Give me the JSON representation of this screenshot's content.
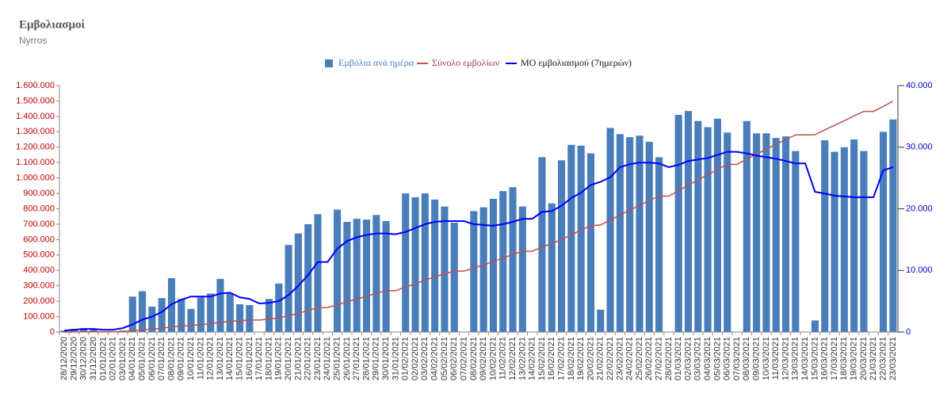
{
  "chart_data": {
    "type": "bar",
    "title": "Εμβολιασμοί",
    "subtitle": "Nyrros",
    "legend": "top",
    "categories": [
      "28/12/2020",
      "29/12/2020",
      "30/12/2020",
      "31/12/2020",
      "01/01/2021",
      "02/01/2021",
      "03/01/2021",
      "04/01/2021",
      "05/01/2021",
      "06/01/2021",
      "07/01/2021",
      "08/01/2021",
      "09/01/2021",
      "10/01/2021",
      "11/01/2021",
      "12/01/2021",
      "13/01/2021",
      "14/01/2021",
      "15/01/2021",
      "16/01/2021",
      "17/01/2021",
      "18/01/2021",
      "19/01/2021",
      "20/01/2021",
      "21/01/2021",
      "22/01/2021",
      "23/01/2021",
      "24/01/2021",
      "25/01/2021",
      "26/01/2021",
      "27/01/2021",
      "28/01/2021",
      "29/01/2021",
      "30/01/2021",
      "31/01/2021",
      "01/02/2021",
      "02/02/2021",
      "03/02/2021",
      "04/02/2021",
      "05/02/2021",
      "06/02/2021",
      "07/02/2021",
      "08/02/2021",
      "09/02/2021",
      "10/02/2021",
      "11/02/2021",
      "12/02/2021",
      "13/02/2021",
      "14/02/2021",
      "15/02/2021",
      "16/02/2021",
      "17/02/2021",
      "18/02/2021",
      "19/02/2021",
      "20/02/2021",
      "21/02/2021",
      "22/02/2021",
      "23/02/2021",
      "24/02/2021",
      "25/02/2021",
      "26/02/2021",
      "27/02/2021",
      "28/02/2021",
      "01/03/2021",
      "02/03/2021",
      "03/03/2021",
      "04/03/2021",
      "05/03/2021",
      "06/03/2021",
      "07/03/2021",
      "08/03/2021",
      "09/03/2021",
      "10/03/2021",
      "11/03/2021",
      "12/03/2021",
      "13/03/2021",
      "14/03/2021",
      "15/03/2021",
      "16/03/2021",
      "17/03/2021",
      "18/03/2021",
      "19/03/2021",
      "20/03/2021",
      "21/03/2021",
      "22/03/2021",
      "23/03/2021"
    ],
    "series": [
      {
        "name": "Εμβόλια ανά ημέρα",
        "type": "bar",
        "axis": "y2",
        "color": "#4a7ebb",
        "values": [
          250,
          500,
          625,
          500,
          125,
          125,
          250,
          5750,
          6625,
          4125,
          5500,
          8750,
          5375,
          3750,
          5625,
          6250,
          8625,
          6250,
          4500,
          4375,
          0,
          5375,
          7875,
          14125,
          16000,
          17500,
          19125,
          0,
          19875,
          17875,
          18375,
          18250,
          19000,
          18000,
          0,
          22500,
          21875,
          22500,
          21500,
          20375,
          17750,
          0,
          19625,
          20250,
          21625,
          22875,
          23500,
          20375,
          0,
          28375,
          20875,
          27875,
          30375,
          30250,
          29000,
          3625,
          33125,
          32125,
          31625,
          31875,
          30875,
          28375,
          0,
          35250,
          35875,
          34250,
          33250,
          34625,
          32375,
          0,
          34250,
          32250,
          32250,
          31500,
          31750,
          29375,
          0,
          1875,
          31125,
          29250,
          30000,
          31250,
          29375,
          0,
          32500,
          34500
        ]
      },
      {
        "name": "Σύνολο εμβολίων",
        "type": "line",
        "axis": "y",
        "color": "#c0504d",
        "values": [
          250,
          750,
          1375,
          1875,
          2000,
          2125,
          2375,
          8125,
          14750,
          18875,
          24375,
          33125,
          38500,
          42250,
          47875,
          54125,
          62750,
          69000,
          73500,
          77875,
          77875,
          83250,
          91125,
          105250,
          121250,
          138750,
          157875,
          157875,
          177750,
          195625,
          214000,
          232250,
          251250,
          269250,
          269250,
          291750,
          313625,
          336125,
          357625,
          378000,
          395750,
          395750,
          415375,
          435625,
          457250,
          480125,
          503625,
          524000,
          524000,
          552375,
          573250,
          601125,
          631500,
          661750,
          690750,
          694375,
          727500,
          759625,
          791250,
          823125,
          854000,
          882375,
          882375,
          917625,
          953500,
          987750,
          1021000,
          1055625,
          1088000,
          1088000,
          1122250,
          1154500,
          1186750,
          1218250,
          1250000,
          1279375,
          1279375,
          1281250,
          1312375,
          1341625,
          1371625,
          1402875,
          1432250,
          1432250,
          1464750,
          1499250
        ]
      },
      {
        "name": "ΜΟ εμβολιασμού (7ημερών)",
        "type": "line",
        "axis": "y2",
        "color": "#0000ff",
        "values": [
          250,
          375,
          500,
          500,
          375,
          375,
          625,
          1250,
          2000,
          2500,
          3250,
          4500,
          5250,
          5750,
          5750,
          5750,
          6250,
          6375,
          5625,
          5375,
          4625,
          4750,
          5000,
          6000,
          7500,
          9250,
          11375,
          11375,
          13500,
          14750,
          15375,
          15750,
          16000,
          16000,
          15875,
          16250,
          16875,
          17500,
          17875,
          18000,
          18000,
          18000,
          17500,
          17375,
          17250,
          17500,
          17875,
          18375,
          18375,
          19500,
          19625,
          20500,
          21750,
          22625,
          23875,
          24375,
          25125,
          26750,
          27250,
          27500,
          27500,
          27375,
          26750,
          27125,
          27750,
          28000,
          28250,
          28750,
          29250,
          29250,
          29000,
          28625,
          28375,
          28125,
          27750,
          27375,
          27375,
          22750,
          22500,
          22125,
          22000,
          21875,
          21875,
          21875,
          26250,
          26750
        ]
      }
    ],
    "ylim": [
      0,
      1600000
    ],
    "yticks": [
      0,
      {
        "value": 100000,
        "label": "100.000"
      },
      {
        "value": 200000,
        "label": "200.000"
      },
      {
        "value": 300000,
        "label": "300.000"
      },
      {
        "value": 400000,
        "label": "400.000"
      },
      {
        "value": 500000,
        "label": "500.000"
      },
      {
        "value": 600000,
        "label": "600.000"
      },
      {
        "value": 700000,
        "label": "700.000"
      },
      {
        "value": 800000,
        "label": "800.000"
      },
      {
        "value": 900000,
        "label": "900.000"
      },
      {
        "value": 1000000,
        "label": "1.000.000"
      },
      {
        "value": 1100000,
        "label": "1.100.000"
      },
      {
        "value": 1200000,
        "label": "1.200.000"
      },
      {
        "value": 1300000,
        "label": "1.300.000"
      },
      {
        "value": 1400000,
        "label": "1.400.000"
      },
      {
        "value": 1500000,
        "label": "1.500.000"
      },
      {
        "value": 1600000,
        "label": "1.600.000"
      }
    ],
    "y2lim": [
      0,
      40000
    ],
    "y2ticks": [
      0,
      {
        "value": 10000,
        "label": "10.000"
      },
      {
        "value": 20000,
        "label": "20.000"
      },
      {
        "value": 30000,
        "label": "30.000"
      },
      {
        "value": 40000,
        "label": "40.000"
      }
    ]
  }
}
